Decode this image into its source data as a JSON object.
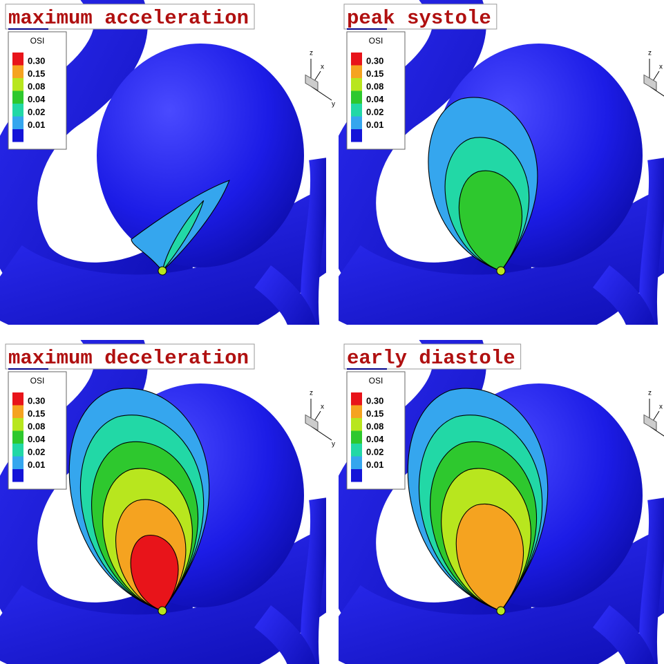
{
  "panels": [
    {
      "title": "maximum acceleration"
    },
    {
      "title": "peak systole"
    },
    {
      "title": "maximum deceleration"
    },
    {
      "title": "early diastole"
    }
  ],
  "legend": {
    "title": "OSI",
    "labels": [
      "0.30",
      "0.15",
      "0.08",
      "0.04",
      "0.02",
      "0.01"
    ],
    "colors": [
      "#e8141a",
      "#f5a320",
      "#b8e61e",
      "#2ec82e",
      "#22d8a6",
      "#35a6ee",
      "#1414d8"
    ]
  },
  "axis_labels": [
    "z",
    "x",
    "y"
  ]
}
